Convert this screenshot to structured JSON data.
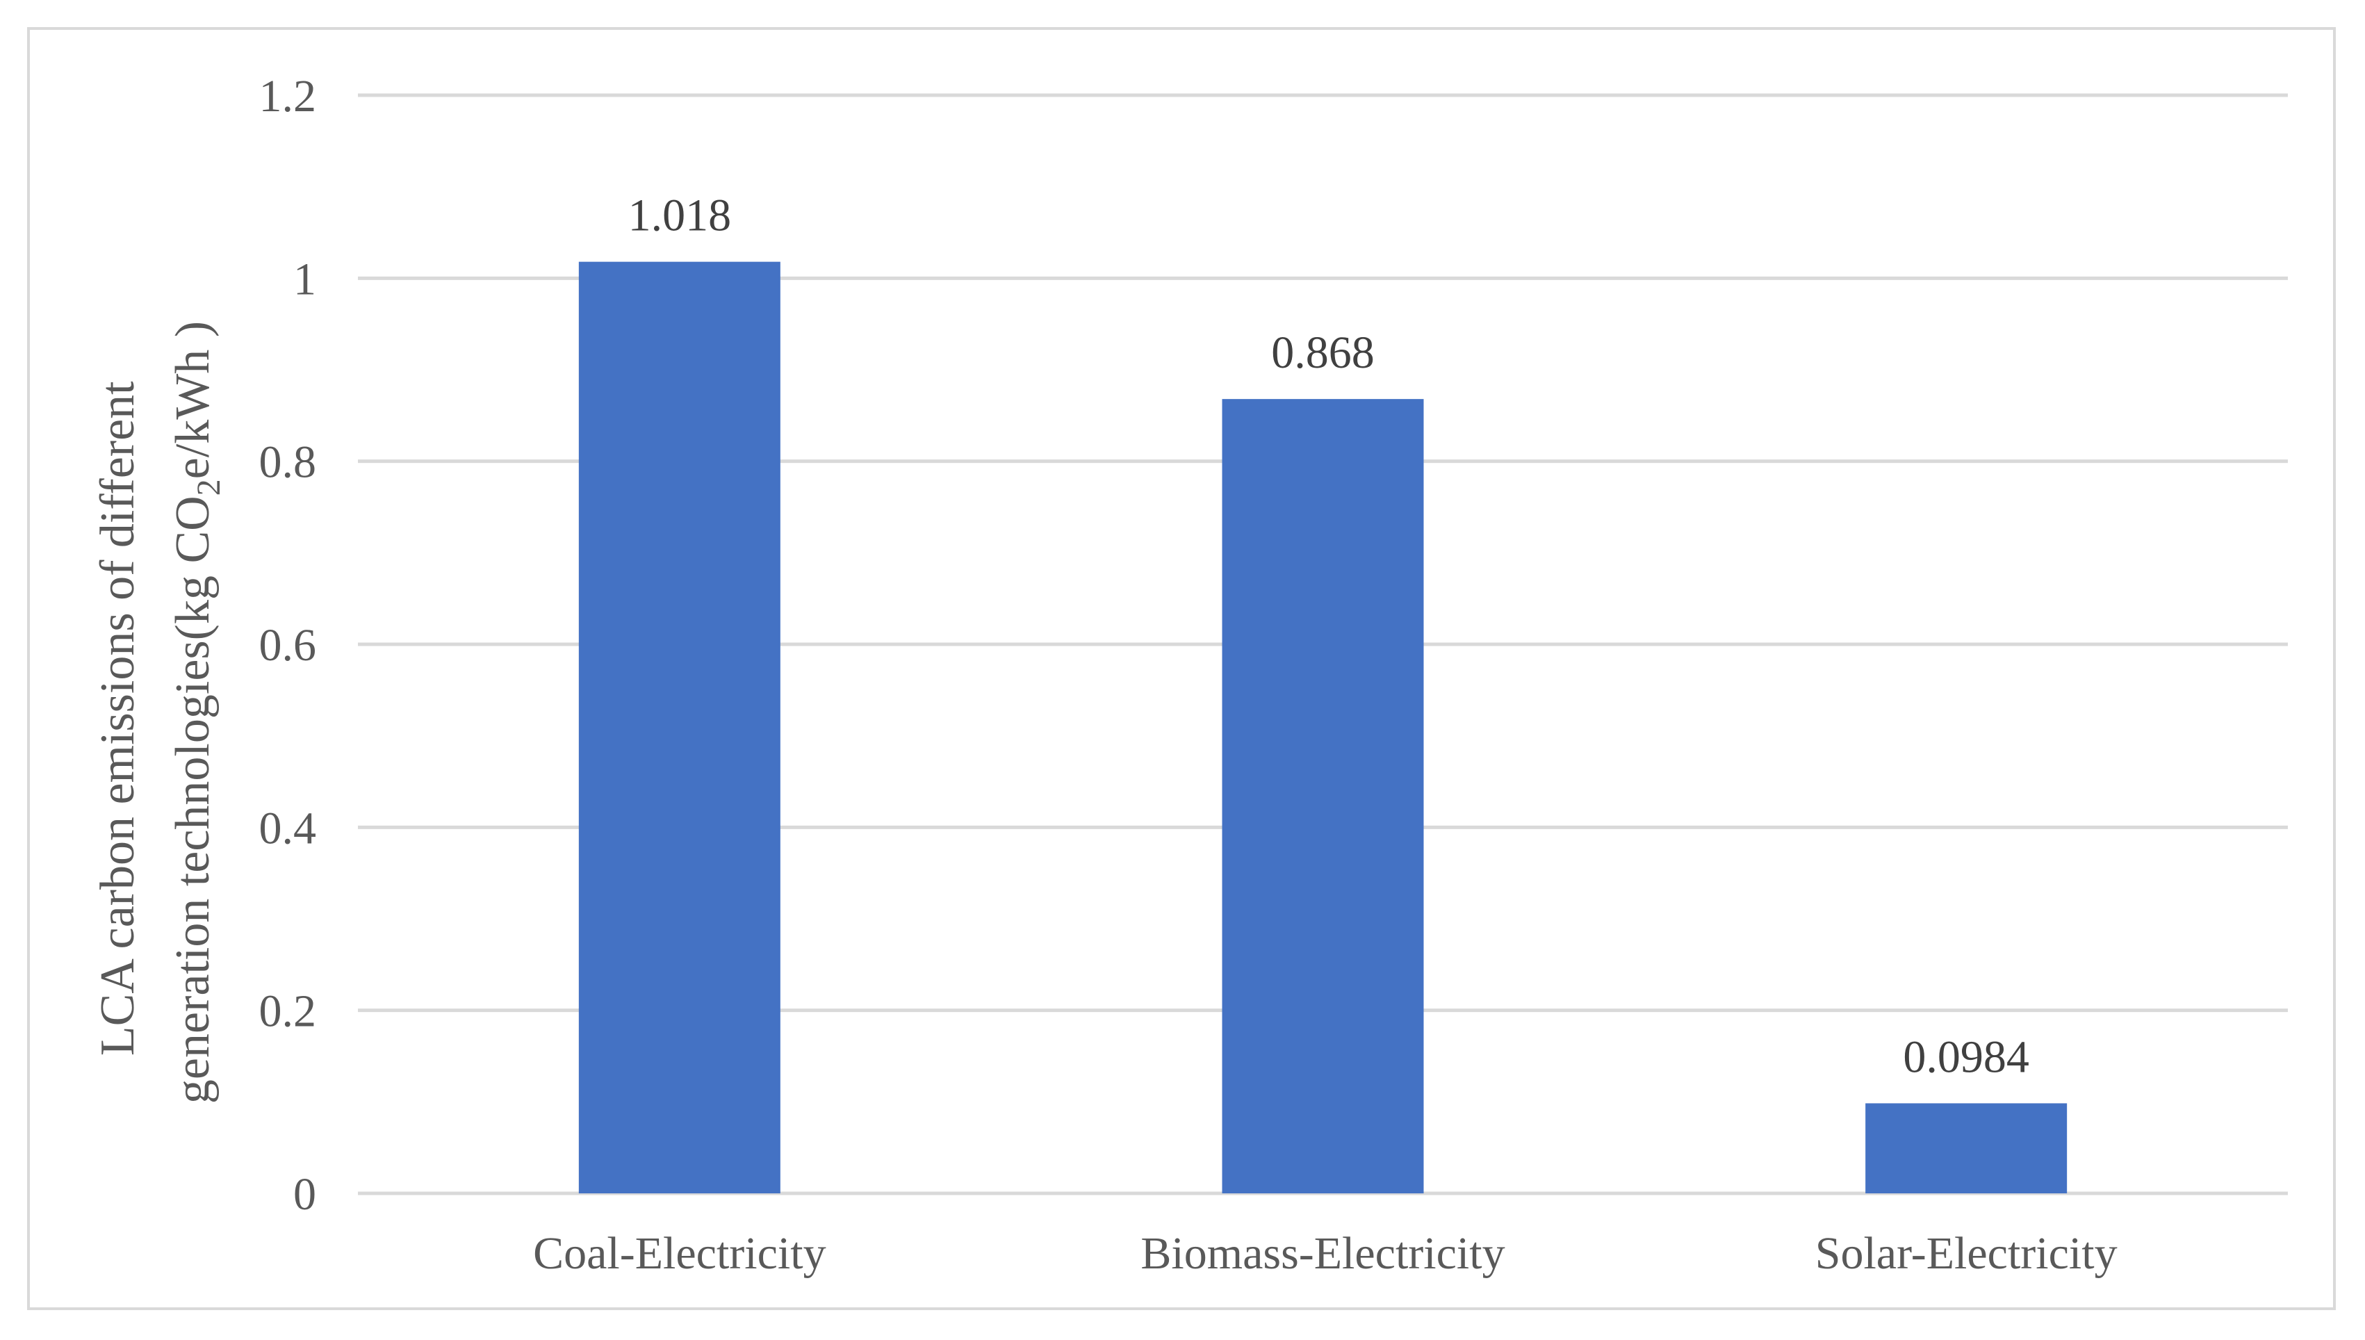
{
  "chart_data": {
    "type": "bar",
    "title": "",
    "categories": [
      "Coal-Electricity",
      "Biomass-Electricity",
      "Solar-Electricity"
    ],
    "values": [
      1.018,
      0.868,
      0.0984
    ],
    "data_labels": [
      "1.018",
      "0.868",
      "0.0984"
    ],
    "xlabel": "",
    "ylabel": {
      "line1": "LCA carbon emissions of different",
      "line2_prefix": "generation technologies(kg CO",
      "line2_subscript": "2",
      "line2_suffix": "e/kWh )"
    },
    "ylim": [
      0,
      1.2
    ],
    "yticks": [
      0,
      0.2,
      0.4,
      0.6,
      0.8,
      1,
      1.2
    ],
    "ytick_labels": [
      "0",
      "0.2",
      "0.4",
      "0.6",
      "0.8",
      "1",
      "1.2"
    ],
    "grid": true,
    "legend": "none",
    "bar_color": "#4472c4"
  }
}
